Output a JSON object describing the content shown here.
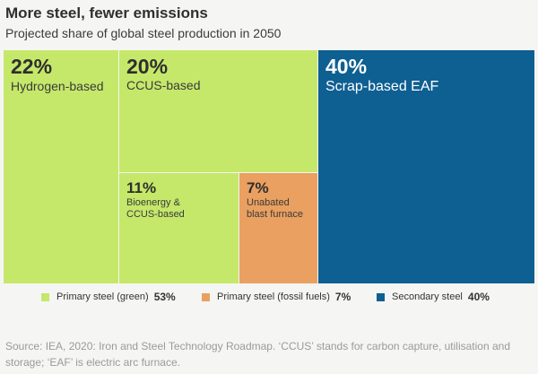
{
  "chart_data": {
    "type": "treemap",
    "title": "More steel, fewer emissions",
    "subtitle": "Projected share of global steel production in 2050",
    "cells": [
      {
        "id": "hydrogen",
        "pct": "22%",
        "label": [
          "Hydrogen-based"
        ],
        "value": 22,
        "group": "primary_green"
      },
      {
        "id": "ccus",
        "pct": "20%",
        "label": [
          "CCUS-based"
        ],
        "value": 20,
        "group": "primary_green"
      },
      {
        "id": "bioenergy",
        "pct": "11%",
        "label": [
          "Bioenergy &",
          "CCUS-based"
        ],
        "value": 11,
        "group": "primary_green"
      },
      {
        "id": "unabated",
        "pct": "7%",
        "label": [
          "Unabated",
          "blast furnace"
        ],
        "value": 7,
        "group": "primary_fossil"
      },
      {
        "id": "scrap",
        "pct": "40%",
        "label": [
          "Scrap-based EAF"
        ],
        "value": 40,
        "group": "secondary"
      }
    ],
    "legend": [
      {
        "id": "primary_green",
        "label": "Primary steel (green)",
        "value": "53%",
        "color": "#c5e86a"
      },
      {
        "id": "primary_fossil",
        "label": "Primary steel (fossil fuels)",
        "value": "7%",
        "color": "#e9a060"
      },
      {
        "id": "secondary",
        "label": "Secondary steel",
        "value": "40%",
        "color": "#0e5f92"
      }
    ]
  },
  "source": "Source: IEA, 2020: Iron and Steel Technology Roadmap. ‘CCUS’ stands for carbon capture, utilisation and storage; ‘EAF’ is electric arc furnace."
}
